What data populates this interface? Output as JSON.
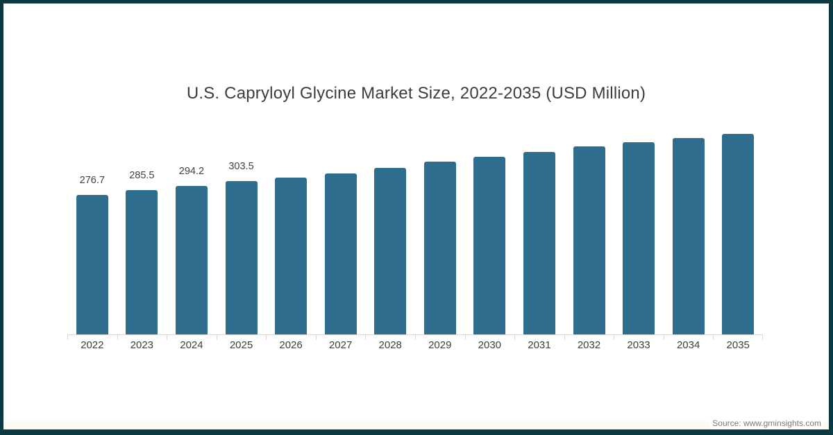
{
  "page": {
    "background": "#ffffff",
    "frame_color": "#0d3944"
  },
  "chart_data": {
    "type": "bar",
    "title": "U.S. Capryloyl Glycine Market Size, 2022-2035 (USD Million)",
    "unit": "USD Million",
    "categories": [
      "2022",
      "2023",
      "2024",
      "2025",
      "2026",
      "2027",
      "2028",
      "2029",
      "2030",
      "2031",
      "2032",
      "2033",
      "2034",
      "2035"
    ],
    "values": [
      276.7,
      285.5,
      294.2,
      303.5,
      311.0,
      318.5,
      330.0,
      342.5,
      352.0,
      362.0,
      373.0,
      381.0,
      389.5,
      397.5
    ],
    "data_labels": [
      "276.7",
      "285.5",
      "294.2",
      "303.5",
      "",
      "",
      "",
      "",
      "",
      "",
      "",
      "",
      "",
      ""
    ],
    "bar_color": "#2e6d8e",
    "axis_color": "#d9d9d9",
    "tick_label_color": "#3d3d3d",
    "data_label_color": "#404040",
    "title_color": "#3c3c3c",
    "ylim": [
      0,
      436
    ],
    "grid": false,
    "legend": false,
    "xlabel": "",
    "ylabel": ""
  },
  "footer": {
    "source": "Source: www.gminsights.com"
  }
}
